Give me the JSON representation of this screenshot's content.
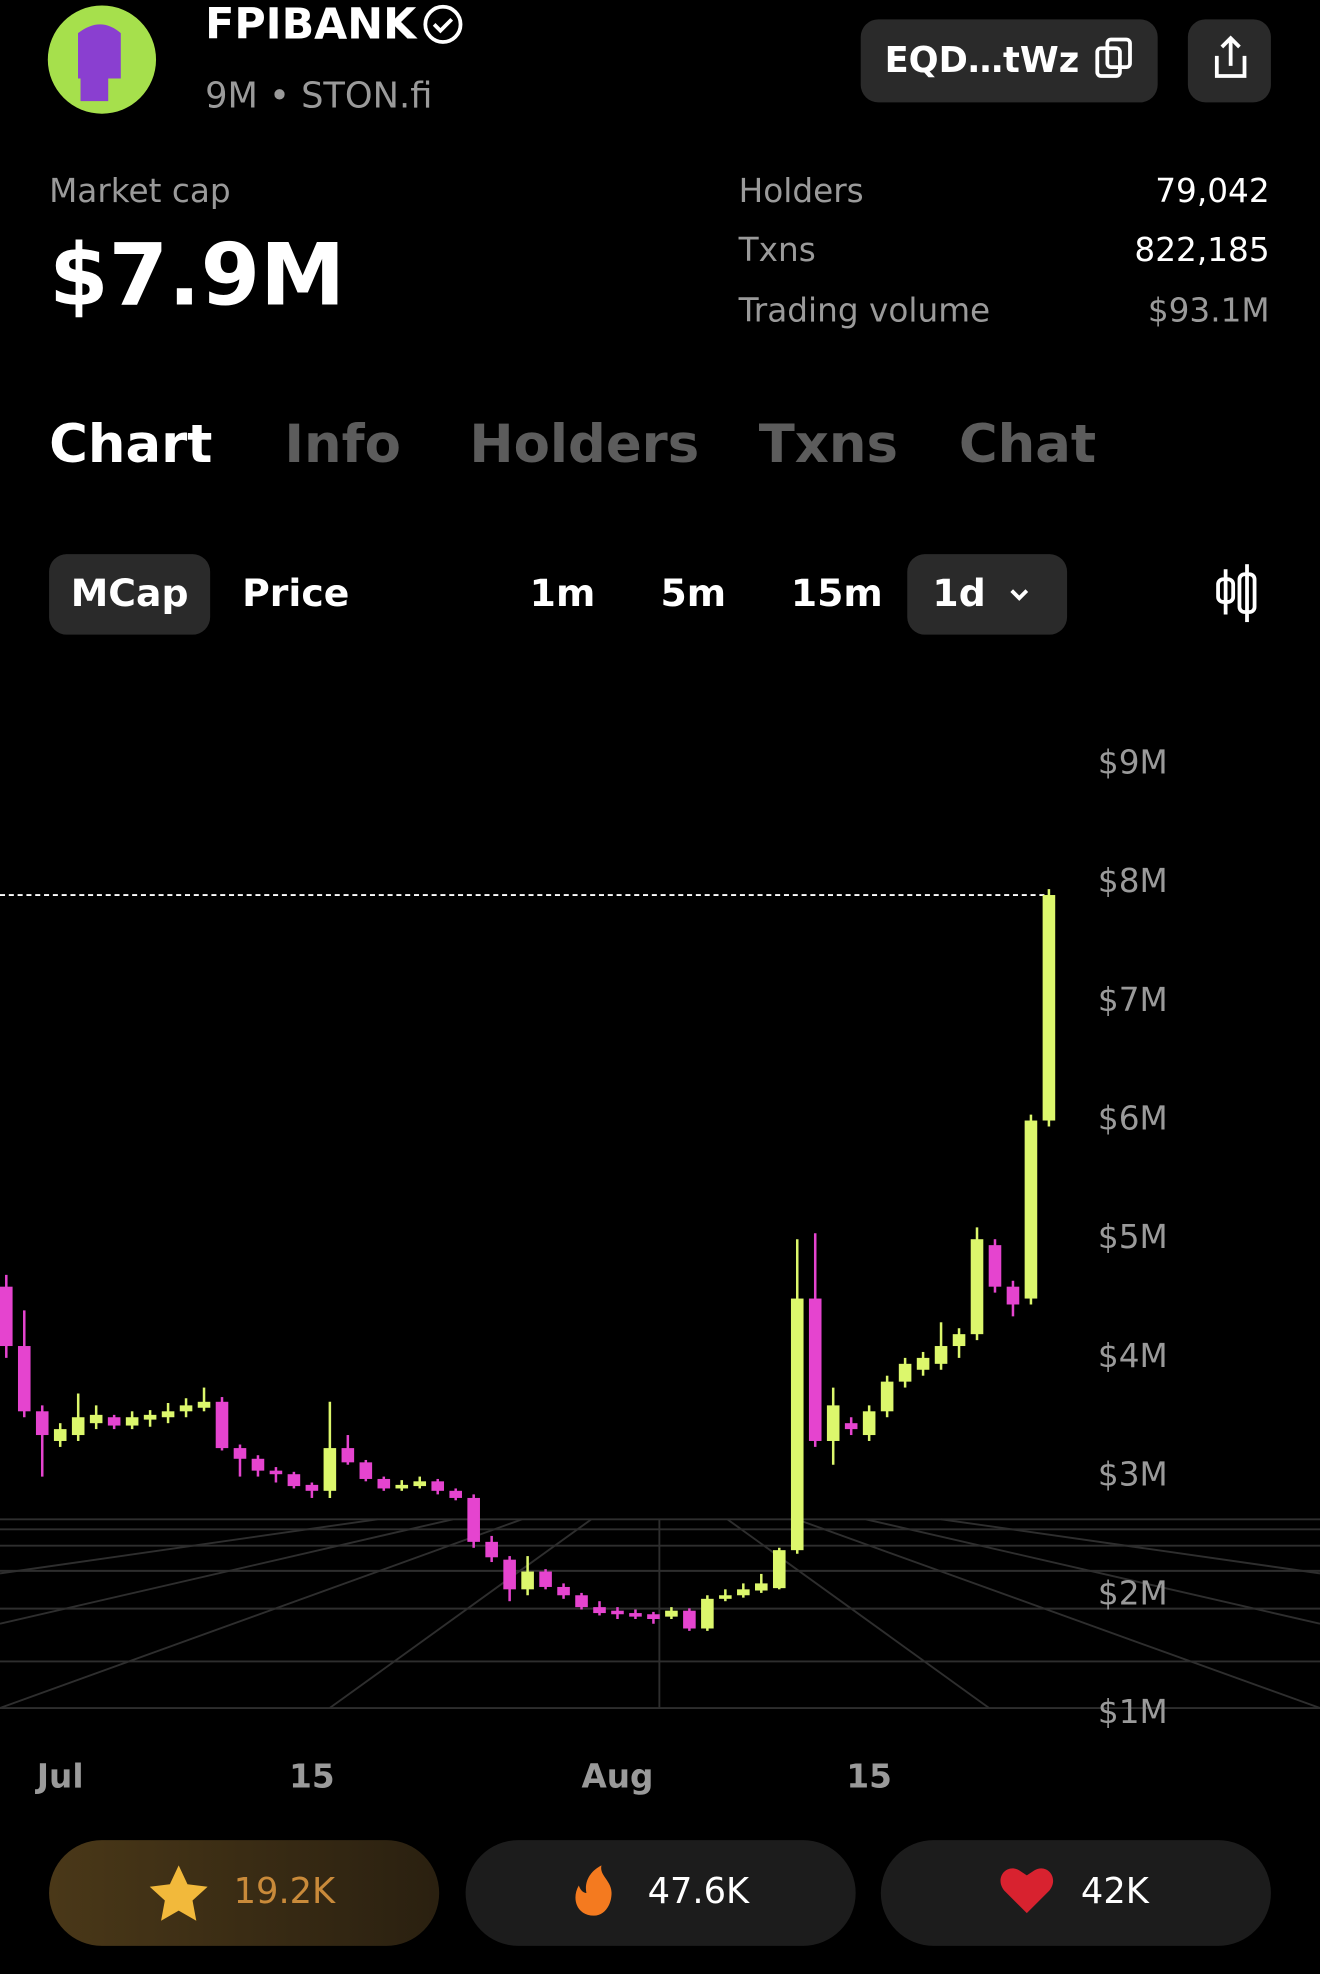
{
  "header": {
    "title": "FPIBANK",
    "subtitle": "9M • STON.fi",
    "address": "EQD…tWz"
  },
  "stats": {
    "market_cap_label": "Market cap",
    "market_cap": "$7.9M",
    "holders_label": "Holders",
    "holders": "79,042",
    "txns_label": "Txns",
    "txns": "822,185",
    "volume_label": "Trading volume",
    "volume": "$93.1M"
  },
  "tabs": {
    "items": [
      "Chart",
      "Info",
      "Holders",
      "Txns",
      "Chat"
    ],
    "active": 0
  },
  "controls": {
    "modes": [
      "MCap",
      "Price"
    ],
    "active_mode": 0,
    "intervals": [
      "1m",
      "5m",
      "15m",
      "1d"
    ],
    "active_interval": 3
  },
  "reactions": [
    "19.2K",
    "47.6K",
    "42K"
  ],
  "chart_data": {
    "type": "candlestick",
    "up_color": "#dcf76c",
    "down_color": "#e544cf",
    "x": [
      -3,
      -2,
      -1,
      0,
      1,
      2,
      3,
      4,
      5,
      6,
      7,
      8,
      9,
      10,
      11,
      12,
      13,
      14,
      15,
      16,
      17,
      18,
      19,
      20,
      21,
      22,
      23,
      24,
      25,
      26,
      27,
      28,
      29,
      30,
      31,
      32,
      33,
      34,
      35,
      36,
      37,
      38,
      39,
      40,
      41,
      42,
      43,
      44,
      45,
      46,
      47,
      48,
      49,
      50,
      51,
      52,
      53,
      54,
      55
    ],
    "open": [
      4.6,
      4.1,
      3.55,
      3.3,
      3.35,
      3.45,
      3.5,
      3.43,
      3.48,
      3.5,
      3.55,
      3.58,
      3.63,
      3.24,
      3.15,
      3.05,
      3.02,
      2.93,
      2.88,
      3.24,
      3.12,
      2.98,
      2.9,
      2.92,
      2.96,
      2.88,
      2.82,
      2.45,
      2.3,
      2.05,
      2.2,
      2.07,
      2.0,
      1.9,
      1.87,
      1.85,
      1.84,
      1.82,
      1.87,
      1.72,
      1.97,
      2.0,
      2.04,
      2.06,
      2.38,
      4.5,
      3.3,
      3.45,
      3.35,
      3.55,
      3.8,
      3.9,
      3.95,
      4.1,
      4.2,
      4.95,
      4.6,
      4.5,
      6.0
    ],
    "high": [
      4.7,
      4.4,
      3.6,
      3.45,
      3.7,
      3.6,
      3.52,
      3.55,
      3.56,
      3.62,
      3.66,
      3.75,
      3.67,
      3.27,
      3.18,
      3.08,
      3.04,
      2.95,
      3.63,
      3.35,
      3.14,
      3.0,
      2.97,
      3.0,
      2.98,
      2.9,
      2.85,
      2.5,
      2.33,
      2.33,
      2.22,
      2.1,
      2.02,
      1.95,
      1.9,
      1.88,
      1.86,
      1.9,
      1.89,
      2.0,
      2.05,
      2.1,
      2.18,
      2.4,
      5.0,
      5.05,
      3.75,
      3.5,
      3.6,
      3.85,
      4.0,
      4.05,
      4.3,
      4.25,
      5.1,
      5.0,
      4.65,
      6.05,
      7.95
    ],
    "low": [
      4.0,
      3.5,
      3.0,
      3.25,
      3.3,
      3.4,
      3.4,
      3.4,
      3.42,
      3.45,
      3.5,
      3.55,
      3.22,
      3.0,
      3.0,
      2.95,
      2.9,
      2.82,
      2.82,
      3.1,
      2.96,
      2.88,
      2.88,
      2.9,
      2.85,
      2.8,
      2.4,
      2.28,
      1.95,
      2.0,
      2.05,
      1.97,
      1.88,
      1.83,
      1.8,
      1.8,
      1.76,
      1.8,
      1.7,
      1.7,
      1.95,
      1.98,
      2.02,
      2.05,
      2.35,
      3.25,
      3.1,
      3.35,
      3.3,
      3.5,
      3.75,
      3.85,
      3.9,
      4.0,
      4.15,
      4.55,
      4.35,
      4.45,
      5.95
    ],
    "close": [
      4.1,
      3.55,
      3.35,
      3.4,
      3.5,
      3.52,
      3.43,
      3.5,
      3.52,
      3.55,
      3.6,
      3.63,
      3.24,
      3.15,
      3.05,
      3.02,
      2.92,
      2.88,
      3.24,
      3.12,
      2.98,
      2.9,
      2.93,
      2.96,
      2.88,
      2.82,
      2.45,
      2.32,
      2.05,
      2.2,
      2.07,
      2.0,
      1.9,
      1.85,
      1.84,
      1.82,
      1.8,
      1.87,
      1.72,
      1.97,
      2.0,
      2.05,
      2.1,
      2.38,
      4.5,
      3.3,
      3.6,
      3.4,
      3.55,
      3.8,
      3.95,
      4.0,
      4.1,
      4.2,
      5.0,
      4.6,
      4.45,
      6.0,
      7.9
    ],
    "xlim": [
      -3.35,
      55.8
    ],
    "xticks": [
      {
        "value": 0,
        "label": "Jul"
      },
      {
        "value": 14,
        "label": "15"
      },
      {
        "value": 31,
        "label": "Aug"
      },
      {
        "value": 45,
        "label": "15"
      }
    ],
    "ylim": [
      0.7,
      9.5
    ],
    "yticks": [
      {
        "value": 1,
        "label": "$1M"
      },
      {
        "value": 2,
        "label": "$2M"
      },
      {
        "value": 3,
        "label": "$3M"
      },
      {
        "value": 4,
        "label": "$4M"
      },
      {
        "value": 5,
        "label": "$5M"
      },
      {
        "value": 6,
        "label": "$6M"
      },
      {
        "value": 7,
        "label": "$7M"
      },
      {
        "value": 8,
        "label": "$8M"
      },
      {
        "value": 9,
        "label": "$9M"
      }
    ],
    "grid": false
  }
}
